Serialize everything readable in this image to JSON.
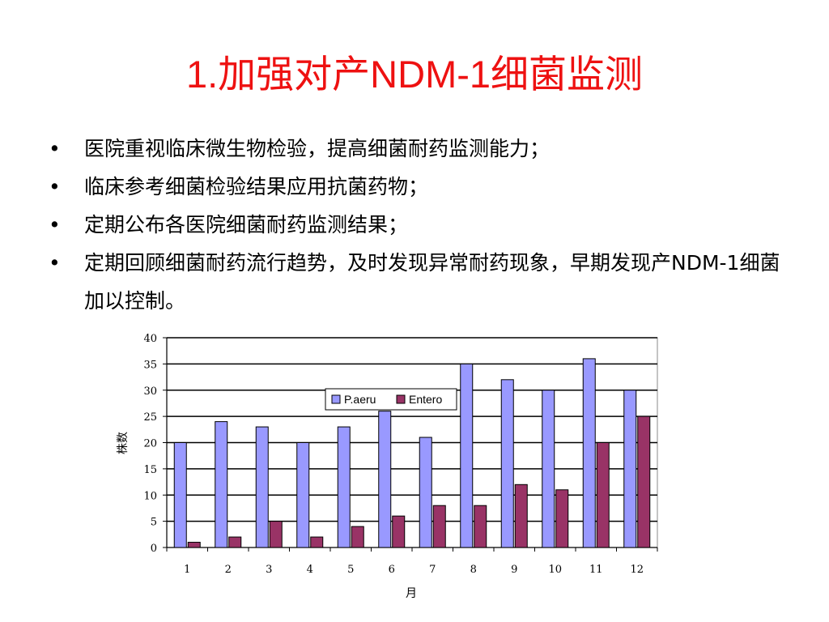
{
  "title": "1.加强对产NDM-1细菌监测",
  "bullets": [
    "医院重视临床微生物检验，提高细菌耐药监测能力；",
    "临床参考细菌检验结果应用抗菌药物；",
    "定期公布各医院细菌耐药监测结果；",
    "定期回顾细菌耐药流行趋势，及时发现异常耐药现象，早期发现产NDM-1细菌加以控制。"
  ],
  "bullet_symbol": "•",
  "colors": {
    "title": "#ee1111",
    "series1": "#9999ff",
    "series2": "#993366"
  },
  "chart_data": {
    "type": "bar",
    "categories": [
      "1",
      "2",
      "3",
      "4",
      "5",
      "6",
      "7",
      "8",
      "9",
      "10",
      "11",
      "12"
    ],
    "series": [
      {
        "name": "P.aeru",
        "values": [
          20,
          24,
          23,
          20,
          23,
          26,
          21,
          35,
          32,
          30,
          36,
          30
        ]
      },
      {
        "name": "Entero",
        "values": [
          1,
          2,
          5,
          2,
          4,
          6,
          8,
          8,
          12,
          11,
          20,
          25
        ]
      }
    ],
    "title": "",
    "xlabel": "月",
    "ylabel": "株数",
    "ylim": [
      0,
      40
    ],
    "yticks": [
      0,
      5,
      10,
      15,
      20,
      25,
      30,
      35,
      40
    ],
    "grid": true,
    "legend_position": "top-right"
  }
}
